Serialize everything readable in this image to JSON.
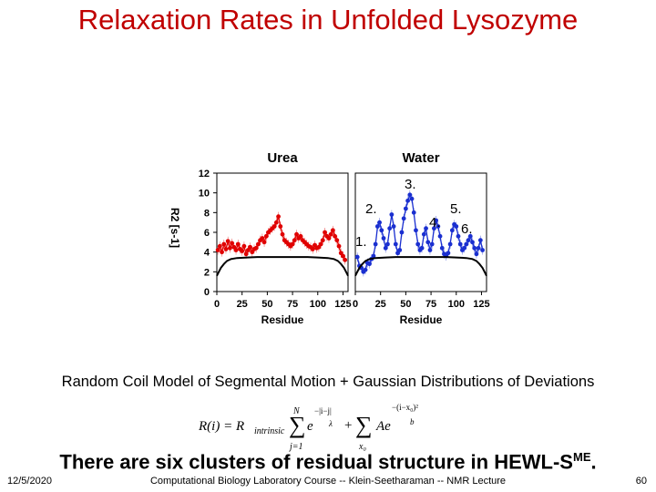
{
  "slide": {
    "title": "Relaxation Rates in Unfolded Lysozyme",
    "caption": "Random Coil Model of Segmental Motion + Gaussian Distributions of Deviations",
    "summary_main": "There are six clusters of residual structure in HEWL-S",
    "summary_sup": "ME",
    "summary_end": ".",
    "footer_date": "12/5/2020",
    "footer_course": "Computational Biology Laboratory Course -- Klein-Seetharaman -- NMR Lecture",
    "page_number": "60",
    "formula": {
      "lhs": "R(i) = R",
      "sub_intrinsic": "intrinsic",
      "sum_top": "N",
      "sum_bottom": "j=1",
      "sum_sign": "∑",
      "e1": "e",
      "exp1": "−|i−j|",
      "exp1_den": "λ",
      "plus": "+",
      "sum2_bottom": "x₀",
      "ae": "Ae",
      "exp2": "−(i−x₀)²",
      "exp2_den": "b"
    },
    "annotations": [
      "1.",
      "2.",
      "3.",
      "4.",
      "5.",
      "6."
    ]
  },
  "colors": {
    "title": "#c00000",
    "urea": "#e00000",
    "water": "#1a2fd0",
    "model": "#000000"
  },
  "chart_data": {
    "type": "scatter",
    "ylabel": "R2 [s-1]",
    "ylim": [
      0,
      12
    ],
    "yticks": [
      0,
      2,
      4,
      6,
      8,
      10,
      12
    ],
    "panels": [
      {
        "title": "Urea",
        "xlabel": "Residue",
        "xlim": [
          0,
          130
        ],
        "xticks": [
          0,
          25,
          50,
          75,
          100,
          125
        ],
        "series": [
          {
            "name": "",
            "color": "#e00000",
            "x": [
              1,
              3,
              5,
              7,
              9,
              11,
              13,
              15,
              17,
              19,
              21,
              23,
              25,
              27,
              29,
              31,
              33,
              35,
              37,
              39,
              41,
              43,
              45,
              47,
              49,
              51,
              53,
              55,
              57,
              59,
              61,
              63,
              65,
              67,
              69,
              71,
              73,
              75,
              77,
              79,
              81,
              83,
              85,
              87,
              89,
              91,
              93,
              95,
              97,
              99,
              101,
              103,
              105,
              107,
              109,
              111,
              113,
              115,
              117,
              119,
              121,
              123,
              125,
              127
            ],
            "y": [
              4.2,
              4.6,
              4.0,
              4.8,
              4.3,
              5.1,
              4.4,
              4.9,
              4.5,
              4.2,
              4.8,
              4.3,
              4.1,
              4.6,
              3.8,
              4.2,
              4.5,
              4.0,
              4.3,
              4.4,
              4.8,
              5.2,
              5.4,
              5.0,
              5.6,
              6.0,
              6.2,
              6.4,
              6.6,
              7.0,
              7.6,
              6.6,
              5.8,
              5.2,
              5.0,
              4.8,
              4.6,
              4.8,
              5.2,
              5.8,
              5.4,
              5.6,
              5.2,
              5.0,
              4.8,
              4.6,
              4.5,
              4.3,
              4.7,
              4.4,
              4.5,
              4.8,
              5.2,
              6.0,
              5.6,
              5.4,
              5.8,
              6.2,
              5.6,
              5.2,
              4.6,
              3.9,
              3.6,
              3.2
            ]
          },
          {
            "name": "",
            "color": "#000000",
            "x": [
              0,
              2,
              4,
              7,
              10,
              14,
              20,
              30,
              40,
              50,
              60,
              70,
              80,
              90,
              100,
              110,
              116,
              120,
              123,
              126,
              128,
              130
            ],
            "y": [
              1.6,
              2.0,
              2.4,
              2.8,
              3.1,
              3.3,
              3.4,
              3.45,
              3.5,
              3.5,
              3.5,
              3.5,
              3.5,
              3.5,
              3.45,
              3.4,
              3.3,
              3.1,
              2.8,
              2.4,
              2.0,
              1.6
            ]
          }
        ]
      },
      {
        "title": "Water",
        "xlabel": "Residue",
        "xlim": [
          0,
          130
        ],
        "xticks": [
          0,
          25,
          50,
          75,
          100,
          125
        ],
        "series": [
          {
            "name": "",
            "color": "#1a2fd0",
            "x": [
              2,
              4,
              6,
              8,
              10,
              12,
              14,
              16,
              18,
              20,
              22,
              24,
              26,
              28,
              30,
              32,
              34,
              36,
              38,
              40,
              42,
              44,
              46,
              48,
              50,
              52,
              54,
              56,
              58,
              60,
              62,
              64,
              66,
              68,
              70,
              72,
              74,
              76,
              78,
              80,
              82,
              84,
              86,
              88,
              90,
              92,
              94,
              96,
              98,
              100,
              102,
              104,
              106,
              108,
              110,
              112,
              114,
              116,
              118,
              120,
              122,
              124,
              126
            ],
            "y": [
              3.5,
              2.6,
              2.4,
              2.0,
              2.2,
              2.9,
              2.8,
              3.3,
              3.6,
              4.8,
              6.6,
              7.0,
              6.2,
              5.4,
              4.4,
              4.8,
              6.4,
              7.8,
              6.6,
              4.8,
              3.9,
              4.2,
              6.0,
              7.4,
              8.4,
              9.2,
              9.8,
              9.4,
              8.0,
              6.2,
              4.8,
              4.2,
              4.4,
              5.8,
              6.4,
              5.0,
              4.2,
              4.8,
              6.4,
              7.2,
              6.6,
              5.6,
              4.4,
              3.8,
              3.6,
              3.9,
              4.8,
              6.2,
              6.8,
              6.6,
              5.6,
              4.8,
              4.2,
              4.4,
              4.8,
              5.2,
              5.6,
              5.0,
              4.4,
              3.8,
              4.4,
              5.2,
              4.2
            ]
          },
          {
            "name": "",
            "color": "#000000",
            "x": [
              0,
              2,
              4,
              7,
              10,
              14,
              20,
              30,
              40,
              50,
              60,
              70,
              80,
              90,
              100,
              110,
              116,
              120,
              123,
              126,
              128,
              130
            ],
            "y": [
              1.6,
              2.0,
              2.4,
              2.8,
              3.1,
              3.3,
              3.4,
              3.45,
              3.5,
              3.5,
              3.5,
              3.5,
              3.5,
              3.5,
              3.45,
              3.4,
              3.3,
              3.1,
              2.8,
              2.4,
              2.0,
              1.6
            ]
          }
        ]
      }
    ]
  }
}
